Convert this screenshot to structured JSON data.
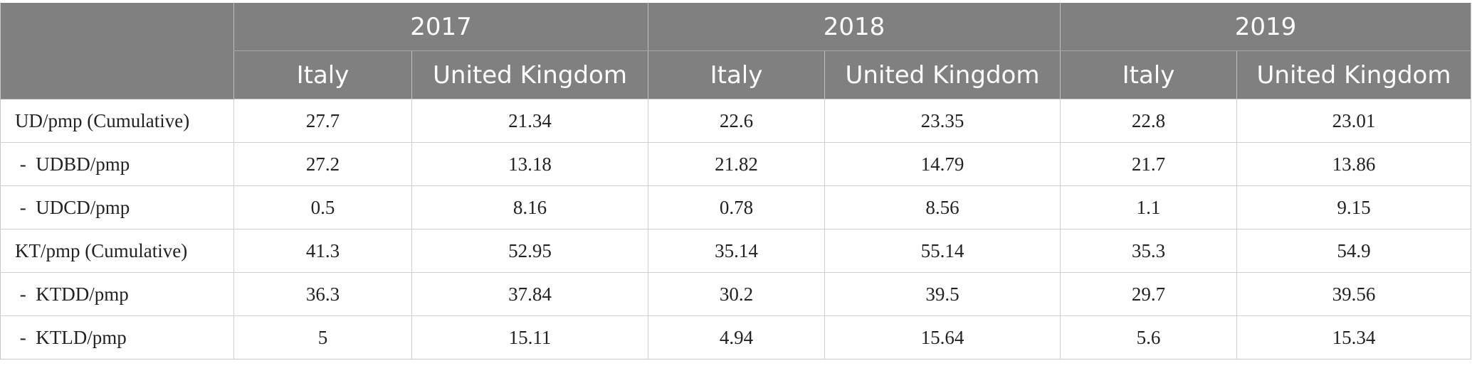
{
  "header": {
    "years": [
      "2017",
      "2018",
      "2019"
    ],
    "countries": [
      "Italy",
      "United Kingdom",
      "Italy",
      "United Kingdom",
      "Italy",
      "United Kingdom"
    ]
  },
  "rows": [
    {
      "label": "UD/pmp (Cumulative)",
      "values": [
        "27.7",
        "21.34",
        "22.6",
        "23.35",
        "22.8",
        "23.01"
      ]
    },
    {
      "label": " -  UDBD/pmp",
      "values": [
        "27.2",
        "13.18",
        "21.82",
        "14.79",
        "21.7",
        "13.86"
      ]
    },
    {
      "label": " -  UDCD/pmp",
      "values": [
        "0.5",
        "8.16",
        "0.78",
        "8.56",
        "1.1",
        "9.15"
      ]
    },
    {
      "label": "KT/pmp (Cumulative)",
      "values": [
        "41.3",
        "52.95",
        "35.14",
        "55.14",
        "35.3",
        "54.9"
      ]
    },
    {
      "label": " -  KTDD/pmp",
      "values": [
        "36.3",
        "37.84",
        "30.2",
        "39.5",
        "29.7",
        "39.56"
      ]
    },
    {
      "label": " -  KTLD/pmp",
      "values": [
        "5",
        "15.11",
        "4.94",
        "15.64",
        "5.6",
        "15.34"
      ]
    }
  ]
}
